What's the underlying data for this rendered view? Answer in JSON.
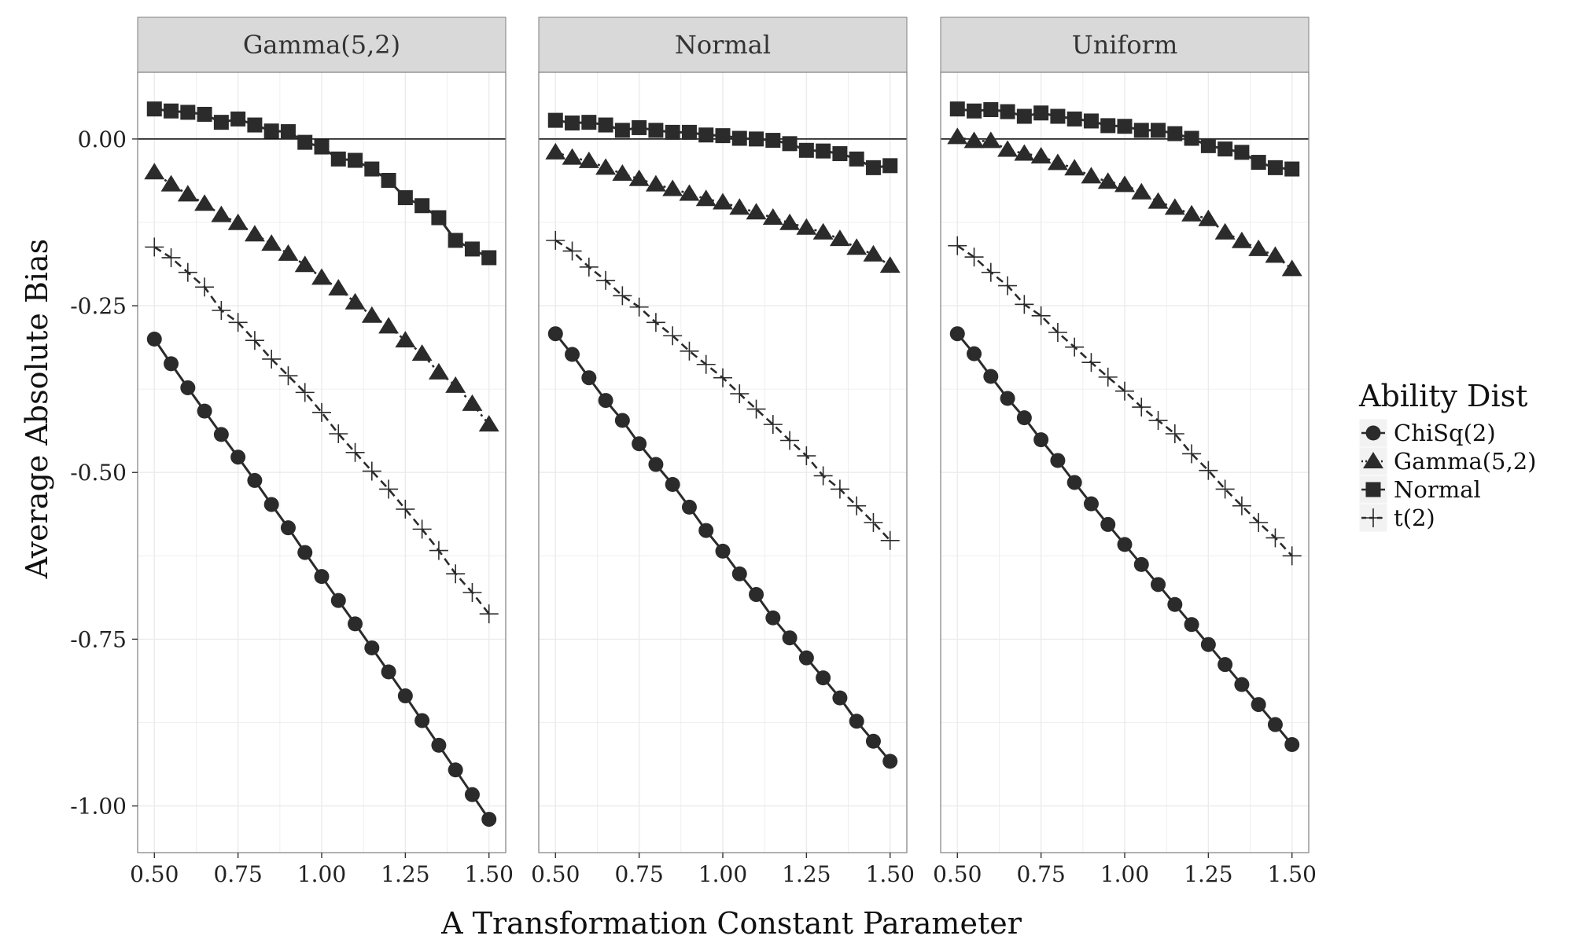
{
  "chart_data": {
    "type": "line",
    "xlabel": "A Transformation Constant Parameter",
    "ylabel": "Average Absolute Bias",
    "xlim": [
      0.45,
      1.55
    ],
    "ylim": [
      -1.07,
      0.1
    ],
    "x_ticks": [
      "0.50",
      "0.75",
      "1.00",
      "1.25",
      "1.50"
    ],
    "y_ticks": [
      "0.00",
      "-0.25",
      "-0.50",
      "-0.75",
      "-1.00"
    ],
    "y_tick_values": [
      0.0,
      -0.25,
      -0.5,
      -0.75,
      -1.0
    ],
    "x_tick_values": [
      0.5,
      0.75,
      1.0,
      1.25,
      1.5
    ],
    "reference_line_y": 0.0,
    "grid": true,
    "legend": {
      "title": "Ability Dist",
      "placement": "right",
      "entries": [
        "ChiSq(2)",
        "Gamma(5,2)",
        "Normal",
        "t(2)"
      ]
    },
    "x": [
      0.5,
      0.55,
      0.6,
      0.65,
      0.7,
      0.75,
      0.8,
      0.85,
      0.9,
      0.95,
      1.0,
      1.05,
      1.1,
      1.15,
      1.2,
      1.25,
      1.3,
      1.35,
      1.4,
      1.45,
      1.5
    ],
    "facets": [
      {
        "label": "Gamma(5,2)",
        "series": [
          {
            "name": "ChiSq(2)",
            "marker": "circle",
            "line": "solid",
            "values": [
              -0.3,
              -0.337,
              -0.373,
              -0.408,
              -0.443,
              -0.477,
              -0.512,
              -0.548,
              -0.583,
              -0.62,
              -0.656,
              -0.692,
              -0.727,
              -0.763,
              -0.799,
              -0.835,
              -0.872,
              -0.909,
              -0.946,
              -0.983,
              -1.02
            ]
          },
          {
            "name": "Gamma(5,2)",
            "marker": "triangle",
            "line": "dotted",
            "values": [
              -0.05,
              -0.068,
              -0.083,
              -0.097,
              -0.114,
              -0.126,
              -0.143,
              -0.157,
              -0.172,
              -0.189,
              -0.208,
              -0.224,
              -0.245,
              -0.265,
              -0.281,
              -0.302,
              -0.322,
              -0.35,
              -0.37,
              -0.397,
              -0.428
            ]
          },
          {
            "name": "Normal",
            "marker": "square",
            "line": "solid",
            "values": [
              0.045,
              0.042,
              0.04,
              0.037,
              0.025,
              0.03,
              0.021,
              0.012,
              0.011,
              -0.005,
              -0.012,
              -0.03,
              -0.032,
              -0.045,
              -0.062,
              -0.088,
              -0.1,
              -0.118,
              -0.152,
              -0.165,
              -0.178
            ]
          },
          {
            "name": "t(2)",
            "marker": "plus",
            "line": "dashed",
            "values": [
              -0.162,
              -0.178,
              -0.2,
              -0.222,
              -0.257,
              -0.275,
              -0.302,
              -0.33,
              -0.355,
              -0.38,
              -0.41,
              -0.442,
              -0.47,
              -0.498,
              -0.525,
              -0.555,
              -0.585,
              -0.617,
              -0.652,
              -0.68,
              -0.712
            ]
          }
        ]
      },
      {
        "label": "Normal",
        "series": [
          {
            "name": "ChiSq(2)",
            "marker": "circle",
            "line": "solid",
            "values": [
              -0.292,
              -0.323,
              -0.358,
              -0.392,
              -0.422,
              -0.457,
              -0.488,
              -0.518,
              -0.552,
              -0.587,
              -0.618,
              -0.652,
              -0.683,
              -0.718,
              -0.748,
              -0.778,
              -0.808,
              -0.838,
              -0.873,
              -0.903,
              -0.933
            ]
          },
          {
            "name": "Gamma(5,2)",
            "marker": "triangle",
            "line": "dotted",
            "values": [
              -0.02,
              -0.028,
              -0.033,
              -0.043,
              -0.052,
              -0.06,
              -0.068,
              -0.075,
              -0.082,
              -0.09,
              -0.095,
              -0.103,
              -0.11,
              -0.118,
              -0.126,
              -0.133,
              -0.14,
              -0.15,
              -0.163,
              -0.173,
              -0.19
            ]
          },
          {
            "name": "Normal",
            "marker": "square",
            "line": "solid",
            "values": [
              0.028,
              0.024,
              0.025,
              0.021,
              0.013,
              0.017,
              0.013,
              0.01,
              0.01,
              0.006,
              0.005,
              0.001,
              0.0,
              -0.002,
              -0.007,
              -0.017,
              -0.018,
              -0.022,
              -0.03,
              -0.043,
              -0.04
            ]
          },
          {
            "name": "t(2)",
            "marker": "plus",
            "line": "dashed",
            "values": [
              -0.152,
              -0.168,
              -0.192,
              -0.212,
              -0.235,
              -0.252,
              -0.275,
              -0.295,
              -0.318,
              -0.338,
              -0.358,
              -0.382,
              -0.405,
              -0.428,
              -0.452,
              -0.475,
              -0.505,
              -0.525,
              -0.55,
              -0.575,
              -0.602
            ]
          }
        ]
      },
      {
        "label": "Uniform",
        "series": [
          {
            "name": "ChiSq(2)",
            "marker": "circle",
            "line": "solid",
            "values": [
              -0.292,
              -0.322,
              -0.356,
              -0.389,
              -0.418,
              -0.451,
              -0.482,
              -0.515,
              -0.547,
              -0.578,
              -0.608,
              -0.638,
              -0.668,
              -0.698,
              -0.728,
              -0.758,
              -0.788,
              -0.818,
              -0.848,
              -0.878,
              -0.908
            ]
          },
          {
            "name": "Gamma(5,2)",
            "marker": "triangle",
            "line": "dotted",
            "values": [
              0.003,
              -0.003,
              -0.003,
              -0.016,
              -0.022,
              -0.026,
              -0.036,
              -0.044,
              -0.056,
              -0.064,
              -0.069,
              -0.08,
              -0.094,
              -0.103,
              -0.113,
              -0.12,
              -0.14,
              -0.153,
              -0.165,
              -0.175,
              -0.195
            ]
          },
          {
            "name": "Normal",
            "marker": "square",
            "line": "solid",
            "values": [
              0.045,
              0.042,
              0.044,
              0.041,
              0.034,
              0.039,
              0.034,
              0.03,
              0.027,
              0.02,
              0.019,
              0.013,
              0.013,
              0.008,
              0.001,
              -0.01,
              -0.015,
              -0.02,
              -0.035,
              -0.043,
              -0.045
            ]
          },
          {
            "name": "t(2)",
            "marker": "plus",
            "line": "dashed",
            "values": [
              -0.16,
              -0.177,
              -0.2,
              -0.22,
              -0.248,
              -0.265,
              -0.29,
              -0.312,
              -0.335,
              -0.357,
              -0.378,
              -0.402,
              -0.422,
              -0.442,
              -0.472,
              -0.497,
              -0.525,
              -0.55,
              -0.575,
              -0.598,
              -0.625
            ]
          }
        ]
      }
    ]
  },
  "colors": {
    "strip_bg": "#d9d9d9",
    "panel_border": "#7f7f7f",
    "grid": "#ebebeb",
    "series": "#2b2b2b",
    "zero_line": "#000000"
  }
}
